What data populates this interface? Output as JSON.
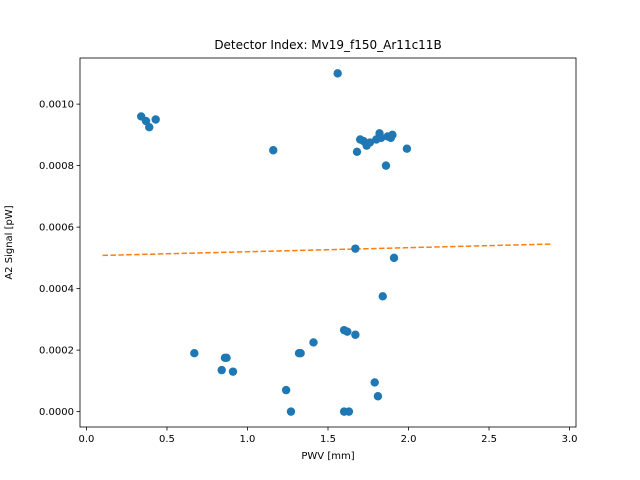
{
  "chart_data": {
    "type": "scatter",
    "title": "Detector Index: Mv19_f150_Ar11c11B",
    "xlabel": "PWV [mm]",
    "ylabel": "A2 Signal [pW]",
    "xlim": [
      -0.04,
      3.04
    ],
    "ylim": [
      -5e-05,
      0.00115
    ],
    "xticks": [
      0.0,
      0.5,
      1.0,
      1.5,
      2.0,
      2.5,
      3.0
    ],
    "xtick_labels": [
      "0.0",
      "0.5",
      "1.0",
      "1.5",
      "2.0",
      "2.5",
      "3.0"
    ],
    "yticks": [
      0.0,
      0.0002,
      0.0004,
      0.0006,
      0.0008,
      0.001
    ],
    "ytick_labels": [
      "0.0000",
      "0.0002",
      "0.0004",
      "0.0006",
      "0.0008",
      "0.0010"
    ],
    "grid": false,
    "series": [
      {
        "name": "data",
        "kind": "scatter",
        "color": "#1f77b4",
        "points": [
          [
            0.34,
            0.00096
          ],
          [
            0.37,
            0.000945
          ],
          [
            0.39,
            0.000925
          ],
          [
            0.43,
            0.00095
          ],
          [
            0.67,
            0.00019
          ],
          [
            0.84,
            0.000135
          ],
          [
            0.86,
            0.000175
          ],
          [
            0.87,
            0.000175
          ],
          [
            0.91,
            0.00013
          ],
          [
            1.16,
            0.00085
          ],
          [
            1.24,
            7e-05
          ],
          [
            1.27,
            0.0
          ],
          [
            1.32,
            0.00019
          ],
          [
            1.33,
            0.00019
          ],
          [
            1.41,
            0.000225
          ],
          [
            1.56,
            0.0011
          ],
          [
            1.6,
            0.000265
          ],
          [
            1.6,
            0.0
          ],
          [
            1.62,
            0.00026
          ],
          [
            1.63,
            0.0
          ],
          [
            1.67,
            0.00025
          ],
          [
            1.67,
            0.00053
          ],
          [
            1.68,
            0.000845
          ],
          [
            1.7,
            0.000885
          ],
          [
            1.72,
            0.00088
          ],
          [
            1.74,
            0.000865
          ],
          [
            1.76,
            0.000875
          ],
          [
            1.79,
            9.5e-05
          ],
          [
            1.8,
            0.000885
          ],
          [
            1.81,
            5e-05
          ],
          [
            1.82,
            0.000905
          ],
          [
            1.83,
            0.00089
          ],
          [
            1.84,
            0.000375
          ],
          [
            1.86,
            0.0008
          ],
          [
            1.87,
            0.000895
          ],
          [
            1.89,
            0.00089
          ],
          [
            1.9,
            0.0009
          ],
          [
            1.91,
            0.0005
          ],
          [
            1.99,
            0.000855
          ]
        ]
      },
      {
        "name": "fit",
        "kind": "line",
        "style": "dashed",
        "color": "#ff7f0e",
        "points": [
          [
            0.1,
            0.000508
          ],
          [
            2.89,
            0.000545
          ]
        ]
      }
    ]
  }
}
